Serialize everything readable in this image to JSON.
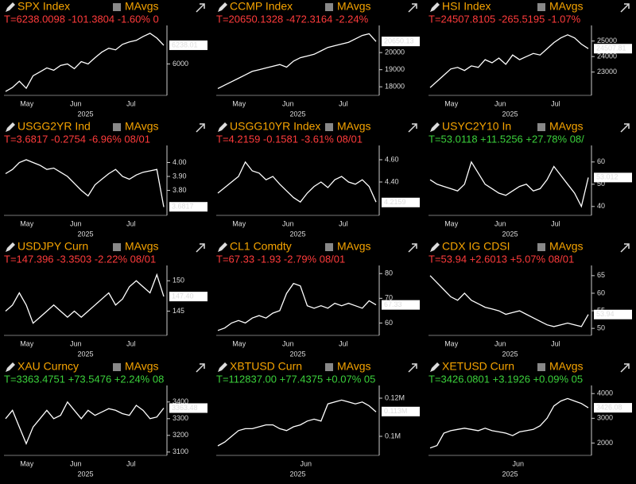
{
  "chart_data": [
    {
      "type": "line",
      "title": "SPX Index",
      "indicator": "MAvgs",
      "stats": "T=6238.0098 -101.3804 -1.60% 0",
      "stats_color": "#ff3b3b",
      "color": "#ffffff",
      "values": [
        5650,
        5700,
        5780,
        5690,
        5850,
        5900,
        5950,
        5920,
        5980,
        6000,
        5940,
        6030,
        6000,
        6080,
        6150,
        6200,
        6180,
        6250,
        6280,
        6300,
        6350,
        6390,
        6330,
        6238
      ],
      "ylim": [
        5600,
        6450
      ],
      "yticks": [
        6000
      ],
      "last": 6238.01,
      "x_labels": [
        "May",
        "Jun",
        "Jul"
      ],
      "x_year": "2025"
    },
    {
      "type": "line",
      "title": "CCMP Index",
      "indicator": "MAvgs",
      "stats": "T=20650.1328 -472.3164 -2.24%",
      "stats_color": "#ff3b3b",
      "color": "#ffffff",
      "values": [
        17900,
        18100,
        18300,
        18500,
        18700,
        18900,
        19000,
        19100,
        19200,
        19300,
        19150,
        19500,
        19700,
        19800,
        19900,
        20100,
        20300,
        20400,
        20500,
        20600,
        20800,
        21000,
        21100,
        20650
      ],
      "ylim": [
        17500,
        21400
      ],
      "yticks": [
        18000,
        19000,
        20000
      ],
      "last": 20650.13,
      "x_labels": [
        "May",
        "Jun",
        "Jul"
      ],
      "x_year": "2025"
    },
    {
      "type": "line",
      "title": "HSI Index",
      "indicator": "MAvgs",
      "stats": "T=24507.8105 -265.5195 -1.07%",
      "stats_color": "#ff3b3b",
      "color": "#ffffff",
      "values": [
        22000,
        22400,
        22800,
        23200,
        23300,
        23100,
        23400,
        23300,
        23800,
        23600,
        23900,
        23500,
        24100,
        23800,
        24000,
        24200,
        24100,
        24500,
        24900,
        25200,
        25400,
        25200,
        24800,
        24508
      ],
      "ylim": [
        21500,
        25800
      ],
      "yticks": [
        23000,
        24000,
        25000
      ],
      "last": 24507.81,
      "x_labels": [
        "May",
        "Jun",
        "Jul"
      ],
      "x_year": "2025"
    },
    {
      "type": "line",
      "title": "USGG2YR Ind",
      "indicator": "MAvgs",
      "stats": "T=3.6817 -0.2754 -6.96% 08/01",
      "stats_color": "#ff3b3b",
      "color": "#ffffff",
      "values": [
        3.92,
        3.95,
        4.0,
        4.02,
        4.0,
        3.98,
        3.95,
        3.96,
        3.93,
        3.9,
        3.85,
        3.8,
        3.76,
        3.84,
        3.88,
        3.92,
        3.95,
        3.9,
        3.88,
        3.91,
        3.93,
        3.94,
        3.95,
        3.68
      ],
      "ylim": [
        3.62,
        4.1
      ],
      "yticks": [
        {
          "value": 3.8,
          "label": "3.80"
        },
        {
          "value": 3.9,
          "label": "3.90"
        },
        {
          "value": 4,
          "label": "4.00"
        }
      ],
      "last": 3.6817,
      "x_labels": [
        "May",
        "Jun",
        "Jul"
      ],
      "x_year": "2025"
    },
    {
      "type": "line",
      "title": "USGG10YR Index",
      "indicator": "MAvgs",
      "stats": "T=4.2159 -0.1581 -3.61% 08/01",
      "stats_color": "#ff3b3b",
      "color": "#ffffff",
      "values": [
        4.3,
        4.35,
        4.4,
        4.45,
        4.58,
        4.5,
        4.48,
        4.42,
        4.45,
        4.38,
        4.32,
        4.26,
        4.22,
        4.3,
        4.36,
        4.4,
        4.35,
        4.42,
        4.45,
        4.4,
        4.38,
        4.42,
        4.36,
        4.22
      ],
      "ylim": [
        4.1,
        4.7
      ],
      "yticks": [
        {
          "value": 4.4,
          "label": "4.40"
        },
        {
          "value": 4.6,
          "label": "4.60"
        }
      ],
      "last": 4.2159,
      "x_labels": [
        "May",
        "Jun",
        "Jul"
      ],
      "x_year": "2025"
    },
    {
      "type": "line",
      "title": "USYC2Y10 In",
      "indicator": "MAvgs",
      "stats": "T=53.0118 +11.5256 +27.78% 08/",
      "stats_color": "#3bd13b",
      "color": "#ffffff",
      "values": [
        52,
        50,
        49,
        48,
        47,
        50,
        60,
        55,
        50,
        48,
        46,
        45,
        47,
        49,
        50,
        47,
        48,
        52,
        58,
        54,
        50,
        46,
        40,
        53
      ],
      "ylim": [
        36,
        66
      ],
      "yticks": [
        40,
        50,
        60
      ],
      "last": 53.012,
      "x_labels": [
        "May",
        "Jun",
        "Jul"
      ],
      "x_year": "2025"
    },
    {
      "type": "line",
      "title": "USDJPY Curn",
      "indicator": "MAvgs",
      "stats": "T=147.396 -3.3503 -2.22% 08/01",
      "stats_color": "#ff3b3b",
      "color": "#ffffff",
      "values": [
        145,
        146,
        148,
        146,
        143,
        144,
        145,
        146,
        145,
        144,
        145,
        144,
        145,
        146,
        147,
        148,
        146,
        147,
        149,
        150,
        149,
        148,
        151,
        147.4
      ],
      "ylim": [
        141,
        152
      ],
      "yticks": [
        145,
        150
      ],
      "last": {
        "value": 147.4,
        "label": "147.40"
      },
      "x_labels": [
        "May",
        "Jun",
        "Jul"
      ],
      "x_year": "2025"
    },
    {
      "type": "line",
      "title": "CL1 Comdty",
      "indicator": "MAvgs",
      "stats": "T=67.33 -1.93 -2.79% 08/01",
      "stats_color": "#ff3b3b",
      "color": "#ffffff",
      "values": [
        57,
        58,
        60,
        61,
        60,
        62,
        63,
        62,
        64,
        65,
        72,
        76,
        75,
        67,
        66,
        67,
        66,
        68,
        67,
        68,
        67,
        66,
        69,
        67.33
      ],
      "ylim": [
        55,
        82
      ],
      "yticks": [
        60,
        70,
        80
      ],
      "last": 67.33,
      "x_labels": [
        "May",
        "Jun",
        "Jul"
      ],
      "x_year": "2025"
    },
    {
      "type": "line",
      "title": "CDX IG CDSI",
      "indicator": "MAvgs",
      "stats": "T=53.94 +2.6013 +5.07% 08/01",
      "stats_color": "#ff3b3b",
      "color": "#ffffff",
      "values": [
        65,
        63,
        61,
        59,
        58,
        60,
        58,
        57,
        56,
        55.5,
        55,
        54,
        54.5,
        55,
        54,
        53,
        52,
        51,
        50.5,
        51,
        51.5,
        51,
        50.5,
        53.94
      ],
      "ylim": [
        48,
        67
      ],
      "yticks": [
        50,
        55,
        60,
        65
      ],
      "last": 53.94,
      "x_labels": [
        "May",
        "Jun",
        "Jul"
      ],
      "x_year": "2025"
    },
    {
      "type": "line",
      "title": "XAU Curncy",
      "indicator": "MAvgs",
      "stats": "T=3363.4751 +73.5476 +2.24% 08",
      "stats_color": "#3bd13b",
      "color": "#ffffff",
      "values": [
        3300,
        3350,
        3250,
        3150,
        3250,
        3300,
        3350,
        3300,
        3320,
        3400,
        3350,
        3300,
        3350,
        3320,
        3340,
        3360,
        3350,
        3330,
        3320,
        3380,
        3350,
        3300,
        3310,
        3363.48
      ],
      "ylim": [
        3080,
        3480
      ],
      "yticks": [
        3100,
        3200,
        3300,
        3400
      ],
      "last": 3363.48,
      "x_labels": [
        "May",
        "Jun",
        "Jul"
      ],
      "x_year": "2025"
    },
    {
      "type": "line",
      "title": "XBTUSD Curn",
      "indicator": "MAvgs",
      "stats": "T=112837.00 +77.4375 +0.07% 05",
      "stats_color": "#3bd13b",
      "color": "#ffffff",
      "values": [
        95000,
        97000,
        100000,
        103000,
        104000,
        104000,
        105000,
        106000,
        106000,
        104000,
        103000,
        105000,
        106000,
        108000,
        109000,
        108000,
        117000,
        118000,
        119000,
        118000,
        117000,
        118000,
        116000,
        112837
      ],
      "ylim": [
        90000,
        125000
      ],
      "yticks": [
        {
          "value": 100000,
          "label": "0.1M"
        },
        {
          "value": 120000,
          "label": "0.12M"
        }
      ],
      "last": {
        "value": 113000,
        "label": "0.113M"
      },
      "x_labels": [
        "Jun"
      ],
      "x_year": "2025"
    },
    {
      "type": "line",
      "title": "XETUSD Curn",
      "indicator": "MAvgs",
      "stats": "T=3426.0801 +3.1926 +0.09% 05",
      "stats_color": "#3bd13b",
      "color": "#ffffff",
      "values": [
        1800,
        1900,
        2400,
        2500,
        2550,
        2600,
        2550,
        2500,
        2600,
        2500,
        2450,
        2400,
        2300,
        2450,
        2500,
        2550,
        2700,
        3000,
        3500,
        3700,
        3800,
        3700,
        3600,
        3426.08
      ],
      "ylim": [
        1500,
        4200
      ],
      "yticks": [
        2000,
        3000,
        4000
      ],
      "last": 3426.08,
      "x_labels": [
        "Jun"
      ],
      "x_year": "2025"
    }
  ]
}
